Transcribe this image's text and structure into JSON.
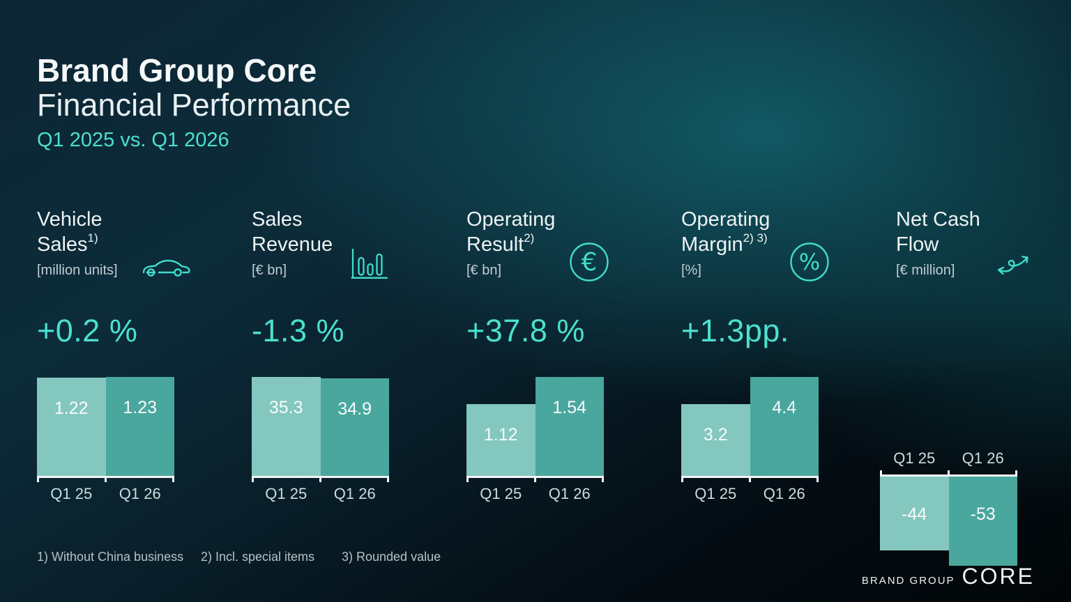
{
  "slide": {
    "title": "Brand Group Core",
    "subtitle": "Financial Performance",
    "period": "Q1 2025 vs. Q1 2026"
  },
  "colors": {
    "accent_teal": "#4ce0cf",
    "icon_teal": "#40ddcb",
    "bar_light": "#84c7bf",
    "bar_dark": "#49a79e",
    "background_glow": "#11565f",
    "baseline_white": "#f2f6f6"
  },
  "chart_data": [
    {
      "id": "vehicle-sales",
      "type": "bar",
      "title_lines": [
        "Vehicle",
        "Sales"
      ],
      "sup": "1)",
      "unit": "[million units]",
      "icon": "car-icon",
      "change_label": "+0.2 %",
      "categories": [
        "Q1 25",
        "Q1 26"
      ],
      "values": [
        1.22,
        1.23
      ],
      "value_labels": [
        "1.22",
        "1.23"
      ],
      "direction": "up"
    },
    {
      "id": "sales-revenue",
      "type": "bar",
      "title_lines": [
        "Sales",
        "Revenue"
      ],
      "sup": "",
      "unit": "[€ bn]",
      "icon": "bar-chart-icon",
      "change_label": "-1.3 %",
      "categories": [
        "Q1 25",
        "Q1 26"
      ],
      "values": [
        35.3,
        34.9
      ],
      "value_labels": [
        "35.3",
        "34.9"
      ],
      "direction": "up"
    },
    {
      "id": "operating-result",
      "type": "bar",
      "title_lines": [
        "Operating",
        "Result"
      ],
      "sup": "2)",
      "unit": "[€ bn]",
      "icon": "euro-icon",
      "change_label": "+37.8 %",
      "categories": [
        "Q1 25",
        "Q1 26"
      ],
      "values": [
        1.12,
        1.54
      ],
      "value_labels": [
        "1.12",
        "1.54"
      ],
      "direction": "up"
    },
    {
      "id": "operating-margin",
      "type": "bar",
      "title_lines": [
        "Operating",
        "Margin"
      ],
      "sup": "2) 3)",
      "unit": "[%]",
      "icon": "percent-icon",
      "change_label": "+1.3pp.",
      "categories": [
        "Q1 25",
        "Q1 26"
      ],
      "values": [
        3.2,
        4.4
      ],
      "value_labels": [
        "3.2",
        "4.4"
      ],
      "direction": "up"
    },
    {
      "id": "net-cash-flow",
      "type": "bar",
      "title_lines": [
        "Net Cash",
        "Flow"
      ],
      "sup": "",
      "unit": "[€ million]",
      "icon": "cash-flow-icon",
      "change_label": "",
      "categories": [
        "Q1 25",
        "Q1 26"
      ],
      "values": [
        -44,
        -53
      ],
      "value_labels": [
        "-44",
        "-53"
      ],
      "direction": "down"
    }
  ],
  "footnotes": [
    "1) Without China business",
    "2) Incl. special items",
    "3) Rounded value"
  ],
  "logo": {
    "brand": "BRAND GROUP",
    "core": "CORE"
  }
}
